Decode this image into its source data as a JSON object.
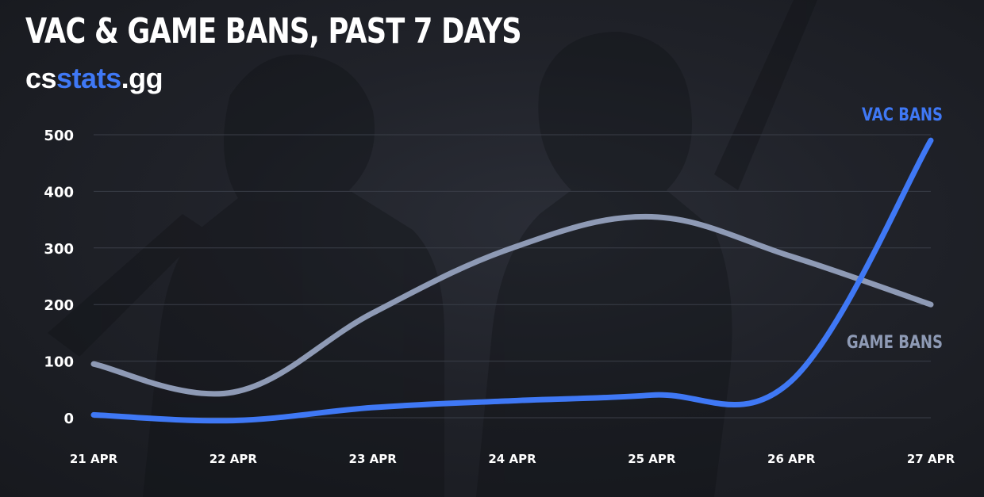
{
  "title": "VAC & GAME BANS, PAST 7 DAYS",
  "brand": {
    "part1": "cs",
    "part2": "stats",
    "part3": ".gg"
  },
  "colors": {
    "vac": "#3f78f5",
    "game": "#8e9ab5",
    "brand_accent": "#3f78f5",
    "grid": "#3a3e48",
    "tick": "#ffffff"
  },
  "chart_data": {
    "type": "line",
    "title": "VAC & GAME BANS, PAST 7 DAYS",
    "categories": [
      "21 APR",
      "22 APR",
      "23 APR",
      "24 APR",
      "25 APR",
      "26 APR",
      "27 APR"
    ],
    "yticks": [
      0,
      100,
      200,
      300,
      400,
      500
    ],
    "ylim": [
      0,
      500
    ],
    "grid": true,
    "series": [
      {
        "name": "VAC BANS",
        "values": [
          5,
          -5,
          18,
          30,
          40,
          65,
          490
        ]
      },
      {
        "name": "GAME BANS",
        "values": [
          95,
          45,
          185,
          300,
          355,
          285,
          200
        ]
      }
    ]
  }
}
